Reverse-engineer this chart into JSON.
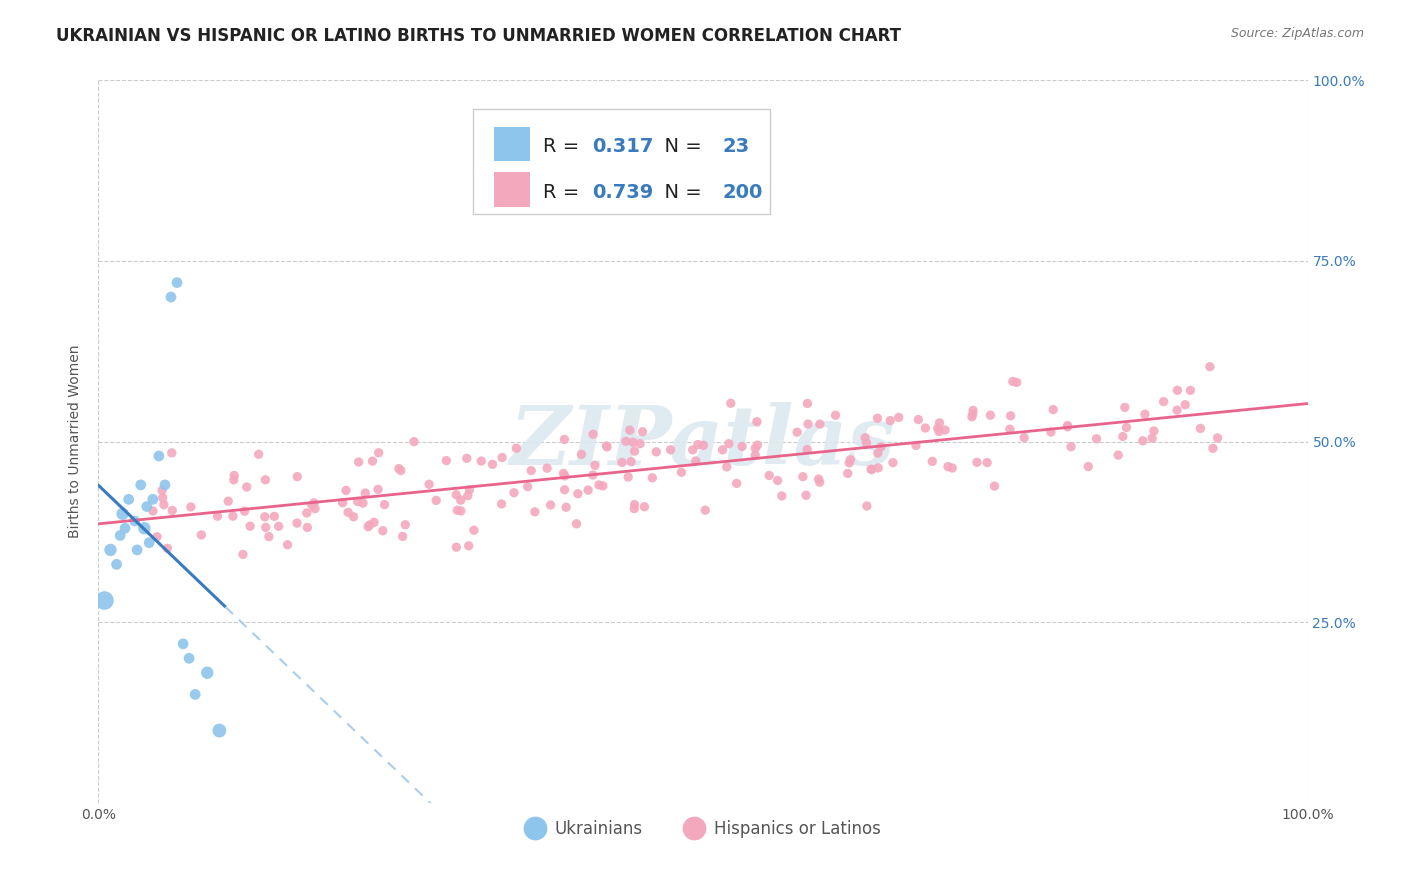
{
  "title": "UKRAINIAN VS HISPANIC OR LATINO BIRTHS TO UNMARRIED WOMEN CORRELATION CHART",
  "source": "Source: ZipAtlas.com",
  "ylabel": "Births to Unmarried Women",
  "xlim": [
    0.0,
    1.0
  ],
  "ylim": [
    0.0,
    1.0
  ],
  "background_color": "#ffffff",
  "plot_bg_color": "#ffffff",
  "grid_color": "#cccccc",
  "watermark_text": "ZIPatlas",
  "ukrainian_color": "#8ec5ed",
  "hispanic_color": "#f4a8be",
  "ukrainian_line_color": "#3a7abf",
  "ukrainian_dash_color": "#aaccee",
  "hispanic_line_color": "#e8648a",
  "R_ukrainian": 0.317,
  "N_ukrainian": 23,
  "R_hispanic": 0.739,
  "N_hispanic": 200,
  "legend_label_1": "Ukrainians",
  "legend_label_2": "Hispanics or Latinos",
  "title_fontsize": 12,
  "label_fontsize": 10,
  "tick_fontsize": 10,
  "stat_fontsize": 14,
  "stat_color": "#3a7abf",
  "stat_label_color": "#222222"
}
